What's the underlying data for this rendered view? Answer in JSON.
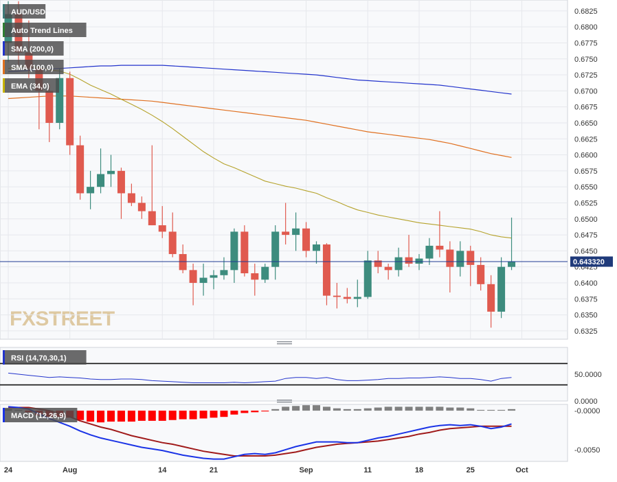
{
  "main_panel": {
    "price_axis_ticks": [
      0.6825,
      0.68,
      0.6775,
      0.675,
      0.6725,
      0.67,
      0.6675,
      0.665,
      0.6625,
      0.66,
      0.6575,
      0.655,
      0.6525,
      0.65,
      0.6475,
      0.645,
      0.6425,
      0.64,
      0.6375,
      0.635,
      0.6325
    ],
    "ylim": [
      0.6312,
      0.6842
    ],
    "current_price": "0.643320",
    "current_price_value": 0.64332,
    "watermark": "FXSTREET",
    "legend": [
      {
        "label": "AUD/USD",
        "color": "#3d7a78"
      },
      {
        "label": "Auto Trend Lines",
        "color": "#2e7d32"
      },
      {
        "label": "SMA (200,0)",
        "color": "#2233cc"
      },
      {
        "label": "SMA (100,0)",
        "color": "#e07020"
      },
      {
        "label": "EMA (34,0)",
        "color": "#c8b400"
      }
    ]
  },
  "x_axis": {
    "labels": [
      {
        "label": "24",
        "index": 0
      },
      {
        "label": "Aug",
        "index": 6
      },
      {
        "label": "14",
        "index": 15
      },
      {
        "label": "21",
        "index": 20
      },
      {
        "label": "Sep",
        "index": 29
      },
      {
        "label": "11",
        "index": 35
      },
      {
        "label": "18",
        "index": 40
      },
      {
        "label": "25",
        "index": 45
      },
      {
        "label": "Oct",
        "index": 50
      }
    ]
  },
  "chart_data": [
    {
      "type": "candlestick",
      "series_name": "AUD/USD",
      "colors": {
        "up": "#3d8c7e",
        "down": "#e05a4f"
      },
      "ohlc": [
        [
          0.6775,
          0.684,
          0.6745,
          0.682
        ],
        [
          0.682,
          0.684,
          0.674,
          0.676
        ],
        [
          0.676,
          0.681,
          0.672,
          0.6735
        ],
        [
          0.6735,
          0.674,
          0.664,
          0.67
        ],
        [
          0.67,
          0.671,
          0.662,
          0.665
        ],
        [
          0.665,
          0.6735,
          0.664,
          0.672
        ],
        [
          0.672,
          0.673,
          0.66,
          0.6615
        ],
        [
          0.6615,
          0.663,
          0.653,
          0.654
        ],
        [
          0.654,
          0.6575,
          0.6515,
          0.655
        ],
        [
          0.655,
          0.661,
          0.654,
          0.657
        ],
        [
          0.657,
          0.66,
          0.655,
          0.6575
        ],
        [
          0.6575,
          0.658,
          0.65,
          0.654
        ],
        [
          0.654,
          0.6555,
          0.652,
          0.6525
        ],
        [
          0.6525,
          0.6535,
          0.65,
          0.6512
        ],
        [
          0.6512,
          0.6615,
          0.649,
          0.649
        ],
        [
          0.649,
          0.652,
          0.647,
          0.648
        ],
        [
          0.648,
          0.651,
          0.644,
          0.6445
        ],
        [
          0.6445,
          0.646,
          0.6415,
          0.642
        ],
        [
          0.642,
          0.643,
          0.6365,
          0.64
        ],
        [
          0.64,
          0.643,
          0.638,
          0.6408
        ],
        [
          0.6408,
          0.642,
          0.639,
          0.6412
        ],
        [
          0.6412,
          0.644,
          0.6405,
          0.642
        ],
        [
          0.642,
          0.6485,
          0.64,
          0.648
        ],
        [
          0.648,
          0.649,
          0.641,
          0.6415
        ],
        [
          0.6415,
          0.643,
          0.638,
          0.6405
        ],
        [
          0.6405,
          0.643,
          0.64,
          0.6425
        ],
        [
          0.6425,
          0.649,
          0.6405,
          0.648
        ],
        [
          0.648,
          0.6525,
          0.646,
          0.6475
        ],
        [
          0.6475,
          0.651,
          0.645,
          0.6485
        ],
        [
          0.6485,
          0.6495,
          0.644,
          0.645
        ],
        [
          0.645,
          0.6465,
          0.643,
          0.646
        ],
        [
          0.646,
          0.6462,
          0.6365,
          0.638
        ],
        [
          0.638,
          0.64,
          0.636,
          0.6378
        ],
        [
          0.6378,
          0.6392,
          0.6368,
          0.6375
        ],
        [
          0.6375,
          0.6405,
          0.6362,
          0.6378
        ],
        [
          0.6378,
          0.645,
          0.6375,
          0.6435
        ],
        [
          0.6435,
          0.645,
          0.6415,
          0.6425
        ],
        [
          0.6425,
          0.643,
          0.6405,
          0.642
        ],
        [
          0.642,
          0.6455,
          0.641,
          0.644
        ],
        [
          0.644,
          0.6475,
          0.6425,
          0.643
        ],
        [
          0.643,
          0.6445,
          0.642,
          0.6438
        ],
        [
          0.6438,
          0.647,
          0.6428,
          0.6458
        ],
        [
          0.6458,
          0.6512,
          0.644,
          0.6452
        ],
        [
          0.6452,
          0.6465,
          0.6385,
          0.6425
        ],
        [
          0.6425,
          0.6465,
          0.641,
          0.645
        ],
        [
          0.645,
          0.6458,
          0.6395,
          0.6428
        ],
        [
          0.6428,
          0.644,
          0.6388,
          0.6398
        ],
        [
          0.6398,
          0.6412,
          0.633,
          0.6355
        ],
        [
          0.6355,
          0.644,
          0.6345,
          0.6425
        ],
        [
          0.6425,
          0.6502,
          0.642,
          0.6433
        ]
      ],
      "sma200": [
        0.673,
        0.6731,
        0.6732,
        0.6733,
        0.6734,
        0.6735,
        0.6736,
        0.6737,
        0.6738,
        0.6739,
        0.6739,
        0.674,
        0.674,
        0.674,
        0.674,
        0.674,
        0.6739,
        0.6738,
        0.6737,
        0.6736,
        0.6735,
        0.6734,
        0.6733,
        0.6732,
        0.6731,
        0.673,
        0.6729,
        0.6728,
        0.6727,
        0.6726,
        0.6725,
        0.6723,
        0.6721,
        0.6719,
        0.6717,
        0.6716,
        0.6715,
        0.6714,
        0.6713,
        0.6712,
        0.6711,
        0.671,
        0.6709,
        0.6707,
        0.6705,
        0.6703,
        0.6701,
        0.6699,
        0.6697,
        0.6695
      ],
      "sma100": [
        0.6688,
        0.6689,
        0.669,
        0.6691,
        0.6692,
        0.6692,
        0.6692,
        0.6691,
        0.669,
        0.6689,
        0.6688,
        0.6687,
        0.6686,
        0.6685,
        0.6684,
        0.6682,
        0.668,
        0.6678,
        0.6676,
        0.6674,
        0.6672,
        0.667,
        0.6668,
        0.6666,
        0.6664,
        0.6662,
        0.666,
        0.6658,
        0.6656,
        0.6654,
        0.6651,
        0.6648,
        0.6645,
        0.6642,
        0.6639,
        0.6636,
        0.6634,
        0.6632,
        0.663,
        0.6628,
        0.6626,
        0.6624,
        0.6621,
        0.6618,
        0.6614,
        0.661,
        0.6606,
        0.6602,
        0.6599,
        0.6596
      ],
      "ema34": [
        0.6735,
        0.6737,
        0.6739,
        0.6736,
        0.6733,
        0.6731,
        0.6726,
        0.6718,
        0.6709,
        0.6702,
        0.6695,
        0.6687,
        0.6679,
        0.6671,
        0.6662,
        0.6652,
        0.6641,
        0.6629,
        0.6617,
        0.6605,
        0.6595,
        0.6586,
        0.658,
        0.6573,
        0.6566,
        0.6559,
        0.6555,
        0.6551,
        0.6548,
        0.6544,
        0.654,
        0.6533,
        0.6527,
        0.652,
        0.6514,
        0.651,
        0.6506,
        0.6503,
        0.65,
        0.6497,
        0.6494,
        0.6492,
        0.649,
        0.6488,
        0.6486,
        0.6484,
        0.648,
        0.6475,
        0.6472,
        0.647
      ]
    },
    {
      "type": "line",
      "series_name": "RSI (14,70,30,1)",
      "color": "#2233cc",
      "axis_ticks": [
        "50.0000",
        "0.0000"
      ],
      "ylim": [
        0,
        100
      ],
      "levels": [
        70,
        30
      ],
      "values": [
        52,
        50,
        48,
        46,
        44,
        45,
        44,
        43,
        41,
        40,
        40,
        41,
        41,
        40,
        38,
        37,
        36,
        35,
        34,
        34,
        34,
        34,
        35,
        34,
        35,
        36,
        37,
        42,
        44,
        44,
        42,
        44,
        40,
        38,
        38,
        39,
        40,
        42,
        42,
        43,
        43,
        44,
        45,
        44,
        42,
        42,
        40,
        37,
        42,
        44
      ]
    },
    {
      "type": "bar+line",
      "series_name": "MACD (12,26,9)",
      "axis_ticks": [
        "-0.0000",
        "-0.0050"
      ],
      "ylim": [
        -0.0065,
        0.0008
      ],
      "histogram": [
        0.0002,
        0.0001,
        -0.0002,
        -0.0006,
        -0.0008,
        -0.0008,
        -0.0009,
        -0.0012,
        -0.0014,
        -0.0015,
        -0.0014,
        -0.0014,
        -0.0014,
        -0.0013,
        -0.0013,
        -0.0013,
        -0.0012,
        -0.0011,
        -0.0011,
        -0.001,
        -0.0009,
        -0.0008,
        -0.0005,
        -0.0003,
        -0.0002,
        -0.0001,
        0.0002,
        0.0005,
        0.0006,
        0.0007,
        0.0007,
        0.0005,
        0.0003,
        0.0002,
        0.0002,
        0.0003,
        0.0004,
        0.0005,
        0.0005,
        0.0005,
        0.0005,
        0.0005,
        0.0005,
        0.0004,
        0.0004,
        0.0003,
        0.0001,
        0.0001,
        0.0001,
        0.0002
      ],
      "macd": [
        0.0005,
        0.0004,
        0.0002,
        -0.0004,
        -0.001,
        -0.0015,
        -0.002,
        -0.0026,
        -0.0031,
        -0.0035,
        -0.0038,
        -0.0041,
        -0.0044,
        -0.0047,
        -0.0049,
        -0.0051,
        -0.0054,
        -0.0057,
        -0.0059,
        -0.0061,
        -0.0062,
        -0.0062,
        -0.0059,
        -0.0056,
        -0.0055,
        -0.0056,
        -0.0054,
        -0.005,
        -0.0046,
        -0.0043,
        -0.004,
        -0.004,
        -0.004,
        -0.0041,
        -0.0041,
        -0.0038,
        -0.0035,
        -0.0033,
        -0.003,
        -0.0027,
        -0.0024,
        -0.0021,
        -0.0019,
        -0.0018,
        -0.0019,
        -0.0018,
        -0.002,
        -0.0023,
        -0.0021,
        -0.0017
      ],
      "signal": [
        0.0004,
        0.0004,
        0.0004,
        0.0002,
        0.0,
        -0.0004,
        -0.0008,
        -0.0013,
        -0.0017,
        -0.0021,
        -0.0024,
        -0.0028,
        -0.0032,
        -0.0035,
        -0.0038,
        -0.0041,
        -0.0043,
        -0.0046,
        -0.0049,
        -0.0052,
        -0.0054,
        -0.0056,
        -0.0058,
        -0.0058,
        -0.0058,
        -0.0058,
        -0.0057,
        -0.0055,
        -0.0053,
        -0.005,
        -0.0047,
        -0.0045,
        -0.0043,
        -0.0042,
        -0.0041,
        -0.004,
        -0.0039,
        -0.0037,
        -0.0035,
        -0.0033,
        -0.003,
        -0.0028,
        -0.0025,
        -0.0023,
        -0.0022,
        -0.0021,
        -0.002,
        -0.002,
        -0.002,
        -0.002
      ],
      "colors": {
        "hist_neg": "#ff0000",
        "hist_pos": "#808080",
        "macd": "#1a33e6",
        "signal": "#a01a1a"
      }
    }
  ]
}
